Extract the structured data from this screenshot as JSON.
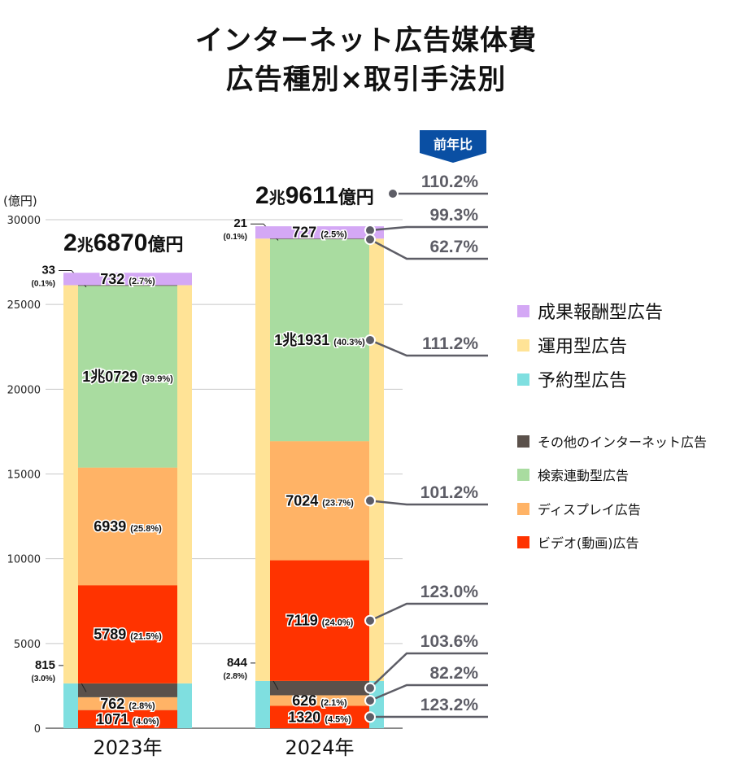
{
  "title": {
    "line1": "インターネット広告媒体費",
    "line2": "広告種別×取引手法別"
  },
  "yoy_badge": "前年比",
  "colors": {
    "performance": "#d4a8f5",
    "operational": "#ffe396",
    "reserved": "#7fdfe0",
    "other": "#5b514b",
    "search": "#a9dca0",
    "display": "#ffb366",
    "video": "#ff3300"
  },
  "legend_trading": [
    {
      "key": "performance",
      "label": "成果報酬型広告"
    },
    {
      "key": "operational",
      "label": "運用型広告"
    },
    {
      "key": "reserved",
      "label": "予約型広告"
    }
  ],
  "legend_types": [
    {
      "key": "other",
      "label": "その他のインターネット広告"
    },
    {
      "key": "search",
      "label": "検索連動型広告"
    },
    {
      "key": "display",
      "label": "ディスプレイ広告"
    },
    {
      "key": "video",
      "label": "ビデオ(動画)広告"
    }
  ],
  "chart_data": {
    "type": "bar",
    "stacked": true,
    "ylabel": "(億円)",
    "ylim": [
      0,
      30000
    ],
    "yticks": [
      "0",
      "5000",
      "10000",
      "15000",
      "20000",
      "25000",
      "30000"
    ],
    "grid": true,
    "categories": [
      "2023年",
      "2024年"
    ],
    "years": [
      {
        "label": "2023年",
        "total_label": {
          "a": "2",
          "b": "兆",
          "c": "6870",
          "d": "億円"
        },
        "groups": [
          {
            "key": "reserved",
            "value": 2648,
            "segments": [
              {
                "key": "video",
                "value": 1071,
                "label": "1071",
                "pct": "(4.0%)"
              },
              {
                "key": "display",
                "value": 762,
                "label": "762",
                "pct": "(2.8%)"
              },
              {
                "key": "other",
                "value": 815,
                "label": "815",
                "pct": "(3.0%)",
                "callout": true
              }
            ]
          },
          {
            "key": "operational",
            "value": 23490,
            "segments": [
              {
                "key": "video",
                "value": 5789,
                "label": "5789",
                "pct": "(21.5%)"
              },
              {
                "key": "display",
                "value": 6939,
                "label": "6939",
                "pct": "(25.8%)"
              },
              {
                "key": "search",
                "value": 10729,
                "label": "1兆0729",
                "pct": "(39.9%)"
              },
              {
                "key": "other",
                "value": 33,
                "label": "33",
                "pct": "(0.1%)",
                "callout": true
              }
            ]
          },
          {
            "key": "performance",
            "value": 732,
            "segments": [
              {
                "key": "performance",
                "value": 732,
                "label": "732",
                "pct": "(2.7%)"
              }
            ]
          }
        ]
      },
      {
        "label": "2024年",
        "total_label": {
          "a": "2",
          "b": "兆",
          "c": "9611",
          "d": "億円"
        },
        "groups": [
          {
            "key": "reserved",
            "value": 2790,
            "segments": [
              {
                "key": "video",
                "value": 1320,
                "label": "1320",
                "pct": "(4.5%)"
              },
              {
                "key": "display",
                "value": 626,
                "label": "626",
                "pct": "(2.1%)"
              },
              {
                "key": "other",
                "value": 844,
                "label": "844",
                "pct": "(2.8%)",
                "callout": true
              }
            ]
          },
          {
            "key": "operational",
            "value": 26095,
            "segments": [
              {
                "key": "video",
                "value": 7119,
                "label": "7119",
                "pct": "(24.0%)"
              },
              {
                "key": "display",
                "value": 7024,
                "label": "7024",
                "pct": "(23.7%)"
              },
              {
                "key": "search",
                "value": 11931,
                "label": "1兆1931",
                "pct": "(40.3%)"
              },
              {
                "key": "other",
                "value": 21,
                "label": "21",
                "pct": "(0.1%)",
                "callout": true
              }
            ]
          },
          {
            "key": "performance",
            "value": 727,
            "segments": [
              {
                "key": "performance",
                "value": 727,
                "label": "727",
                "pct": "(2.5%)"
              }
            ]
          }
        ]
      }
    ],
    "yoy": [
      {
        "target": "total",
        "value": "110.2%"
      },
      {
        "target": "performance",
        "value": "99.3%"
      },
      {
        "target": "operational-other",
        "value": "62.7%"
      },
      {
        "target": "operational-search",
        "value": "111.2%"
      },
      {
        "target": "operational-display",
        "value": "101.2%"
      },
      {
        "target": "operational-video",
        "value": "123.0%"
      },
      {
        "target": "reserved-other",
        "value": "103.6%"
      },
      {
        "target": "reserved-display",
        "value": "82.2%"
      },
      {
        "target": "reserved-video",
        "value": "123.2%"
      }
    ]
  }
}
